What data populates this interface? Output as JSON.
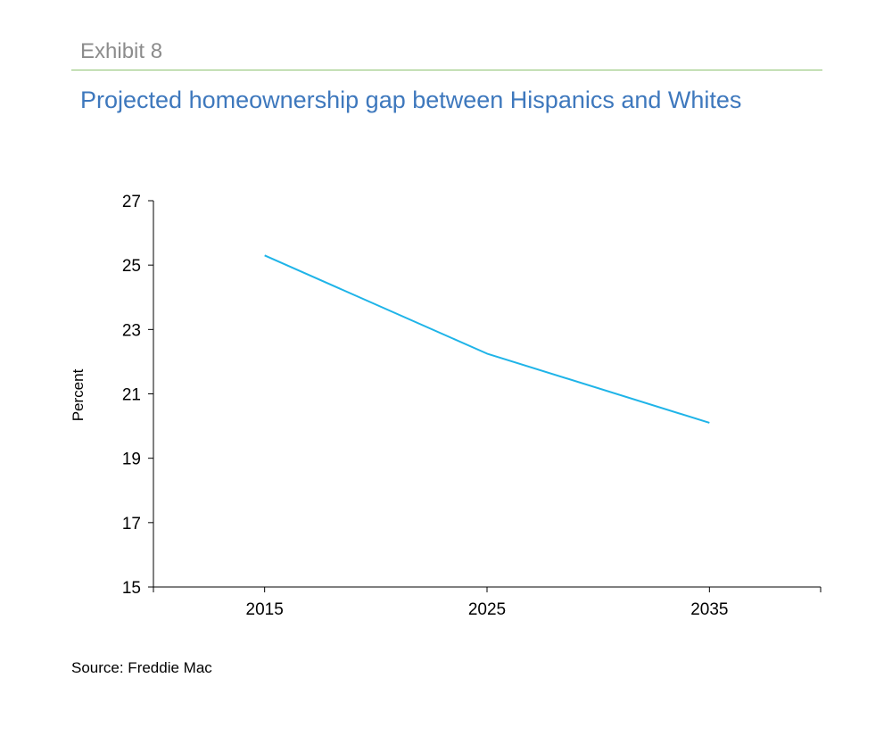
{
  "header": {
    "exhibit": "Exhibit 8",
    "title": "Projected homeownership gap between Hispanics and Whites"
  },
  "footer": {
    "source": "Source: Freddie Mac"
  },
  "chart_data": {
    "type": "line",
    "title": "Projected homeownership gap between Hispanics and Whites",
    "xlabel": "",
    "ylabel": "Percent",
    "categories": [
      "2015",
      "2025",
      "2035"
    ],
    "ylim": [
      15,
      27
    ],
    "yticks": [
      15,
      17,
      19,
      21,
      23,
      25,
      27
    ],
    "series": [
      {
        "values": [
          25.3,
          22.25,
          20.1
        ],
        "color": "#1fb4e8"
      }
    ],
    "grid": false,
    "legend": "none"
  }
}
